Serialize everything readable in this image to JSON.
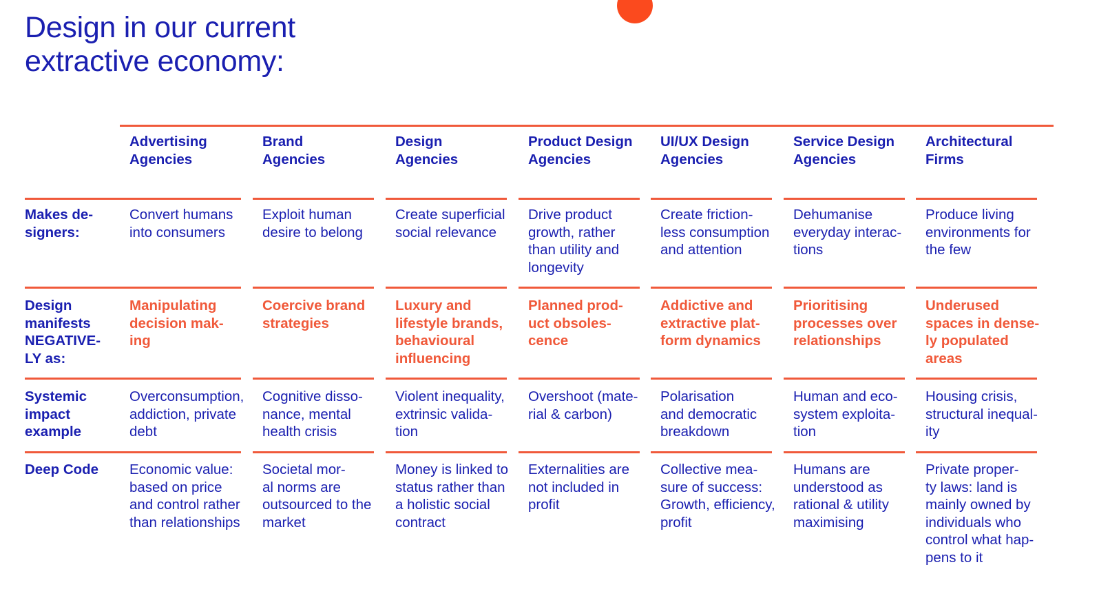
{
  "title": {
    "line1": "Design in our current",
    "line2": "extractive economy:"
  },
  "columns": [
    {
      "line1": "Advertising",
      "line2": "Agencies"
    },
    {
      "line1": "Brand",
      "line2": "Agencies"
    },
    {
      "line1": "Design",
      "line2": "Agencies"
    },
    {
      "line1": "Product Design",
      "line2": "Agencies"
    },
    {
      "line1": "UI/UX Design",
      "line2": "Agencies"
    },
    {
      "line1": "Service Design",
      "line2": "Agencies"
    },
    {
      "line1": "Architectural",
      "line2": "Firms"
    }
  ],
  "rows": [
    {
      "label": [
        "Makes de-",
        "signers:"
      ],
      "style": "body",
      "cells": [
        [
          "Convert humans",
          "into consumers"
        ],
        [
          "Exploit human",
          "desire to belong"
        ],
        [
          "Create superficial",
          "social relevance"
        ],
        [
          "Drive product",
          "growth, rather",
          "than utility and",
          "longevity"
        ],
        [
          "Create friction-",
          "less consumption",
          "and attention"
        ],
        [
          "Dehumanise",
          "everyday interac-",
          "tions"
        ],
        [
          "Produce living",
          "environments for",
          "the few"
        ]
      ]
    },
    {
      "label": [
        "Design",
        "manifests",
        "NEGATIVE-",
        "LY as:"
      ],
      "style": "neg",
      "cells": [
        [
          "Manipulating",
          "decision mak-",
          "ing"
        ],
        [
          "Coercive brand",
          "strategies"
        ],
        [
          "Luxury and",
          "lifestyle brands,",
          "behavioural",
          "influencing"
        ],
        [
          "Planned prod-",
          "uct obsoles-",
          "cence"
        ],
        [
          "Addictive and",
          "extractive plat-",
          "form dynamics"
        ],
        [
          "Prioritising",
          "processes over",
          "relationships"
        ],
        [
          "Underused",
          "spaces in dense-",
          "ly populated",
          "areas"
        ]
      ]
    },
    {
      "label": [
        "Systemic",
        "impact",
        "example"
      ],
      "style": "body",
      "cells": [
        [
          "Overconsumption,",
          "addiction, private",
          "debt"
        ],
        [
          "Cognitive disso-",
          "nance, mental",
          "health crisis"
        ],
        [
          "Violent inequality,",
          "extrinsic valida-",
          "tion"
        ],
        [
          "Overshoot (mate-",
          "rial & carbon)"
        ],
        [
          "Polarisation",
          "and democratic",
          "breakdown"
        ],
        [
          "Human and eco-",
          "system exploita-",
          "tion"
        ],
        [
          "Housing crisis,",
          "structural inequal-",
          "ity"
        ]
      ]
    },
    {
      "label": [
        "Deep Code"
      ],
      "style": "body",
      "cells": [
        [
          "Economic value:",
          "based on price",
          "and control rather",
          "than relationships"
        ],
        [
          "Societal mor-",
          "al norms are",
          "outsourced to the",
          "market"
        ],
        [
          "Money is linked to",
          "status rather than",
          "a holistic social",
          "contract"
        ],
        [
          "Externalities are",
          "not included in",
          "profit"
        ],
        [
          "Collective mea-",
          "sure of success:",
          "Growth, efficiency,",
          "profit"
        ],
        [
          "Humans are",
          "understood as",
          "rational & utility",
          "maximising"
        ],
        [
          "Private proper-",
          "ty laws: land is",
          "mainly owned by",
          "individuals who",
          "control what hap-",
          "pens to it"
        ]
      ]
    }
  ],
  "colors": {
    "text": "#1a1fb0",
    "accent": "#f0593a",
    "dot": "#fb4a1e",
    "background": "#ffffff"
  }
}
